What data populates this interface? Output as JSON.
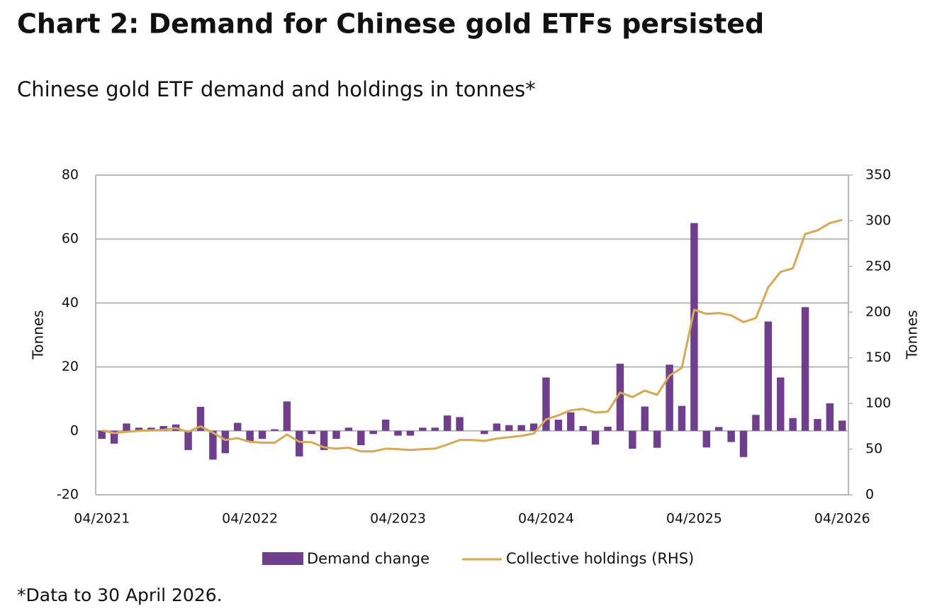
{
  "chart_data": {
    "type": "bar",
    "title": "Chart 2: Demand for Chinese gold ETFs persisted",
    "subtitle": "Chinese gold ETF demand and holdings in tonnes*",
    "ylabel": "Tonnes",
    "y2label": "Tonnes",
    "footnote": "*Data to 30 April 2026.",
    "categories": [
      "04/2021",
      null,
      null,
      null,
      null,
      null,
      null,
      null,
      null,
      null,
      null,
      null,
      "04/2022",
      null,
      null,
      null,
      null,
      null,
      null,
      null,
      null,
      null,
      null,
      null,
      "04/2023",
      null,
      null,
      null,
      null,
      null,
      null,
      null,
      null,
      null,
      null,
      null,
      "04/2024",
      null,
      null,
      null,
      null,
      null,
      null,
      null,
      null,
      null,
      null,
      null,
      "04/2025",
      null,
      null,
      null,
      null,
      null,
      null,
      null,
      null,
      null,
      null,
      null,
      "04/2026"
    ],
    "series": [
      {
        "name": "Demand change",
        "type": "bar",
        "color": "#6f3f8e",
        "values": [
          -2.5,
          -4,
          2.3,
          1,
          1,
          1.5,
          2,
          -6,
          7.5,
          -9,
          -7,
          2.5,
          -3.5,
          -2.5,
          0.5,
          9.2,
          -8,
          -1,
          -6,
          -2.5,
          1,
          -4.5,
          -1,
          3.5,
          -1.5,
          -1.5,
          1,
          1,
          4.8,
          4.3,
          0,
          -1,
          2.3,
          1.8,
          1.8,
          2.3,
          16.7,
          3.5,
          5.8,
          1.5,
          -4.3,
          1.3,
          21,
          -5.6,
          7.6,
          -5.3,
          20.7,
          7.8,
          65,
          -5.2,
          1.2,
          -3.5,
          -8.2,
          5,
          34.2,
          16.7,
          4,
          38.7,
          3.7,
          8.6,
          3.2
        ]
      },
      {
        "name": "Collective holdings (RHS)",
        "type": "line",
        "axis": "y2",
        "color": "#d6aa55",
        "values": [
          70.5,
          67.5,
          69,
          70,
          70.5,
          71,
          73,
          69,
          75,
          68,
          60,
          62,
          58,
          57,
          57,
          66,
          58,
          57.5,
          52,
          50.5,
          51.5,
          47.5,
          47.5,
          50.5,
          50,
          49,
          50,
          50.5,
          55,
          60,
          60,
          59,
          61.5,
          63,
          64.5,
          67,
          82.5,
          87,
          92.5,
          94,
          90,
          91,
          112,
          107,
          114,
          109.5,
          130.5,
          139,
          202.5,
          198,
          199,
          196.5,
          189,
          193.5,
          227,
          244,
          248,
          285.5,
          289.5,
          297.5,
          301
        ]
      }
    ],
    "ylim": [
      -20,
      80
    ],
    "yticks": [
      -20,
      0,
      20,
      40,
      60,
      80
    ],
    "y2lim": [
      0,
      350
    ],
    "y2ticks": [
      0,
      50,
      100,
      150,
      200,
      250,
      300,
      350
    ],
    "grid": true
  }
}
